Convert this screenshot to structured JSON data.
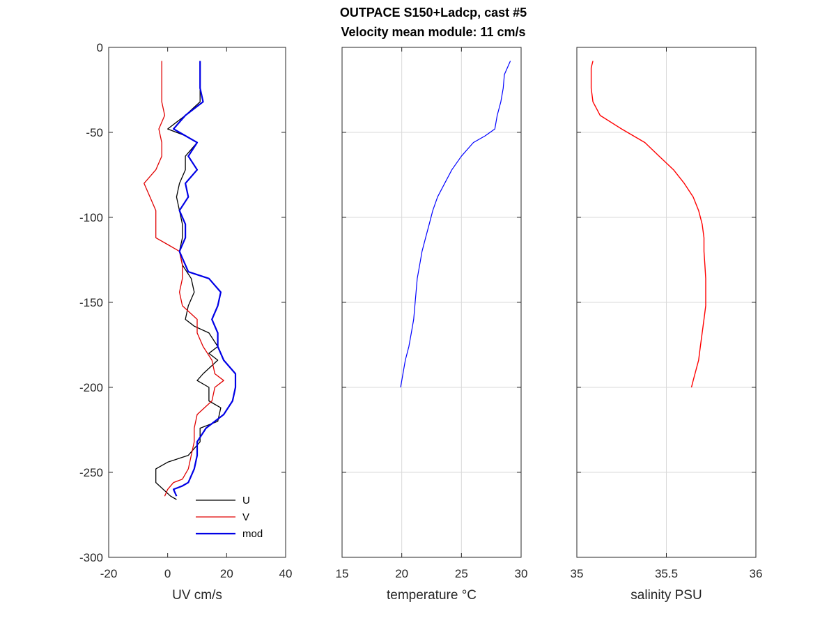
{
  "title_line1": "OUTPACE S150+Ladcp, cast #5",
  "title_line2": "Velocity mean module:  11 cm/s",
  "legend": {
    "u": "U",
    "v": "V",
    "mod": "mod"
  },
  "colors": {
    "u": "#000000",
    "v": "#e00000",
    "mod": "#0000e6",
    "temp": "#0000ff",
    "sal": "#ff0000",
    "axis": "#262626",
    "grid": "#d9d9d9"
  },
  "chart_data": [
    {
      "type": "line",
      "xlabel": "UV cm/s",
      "ylabel": "",
      "xlim": [
        -20,
        40
      ],
      "ylim": [
        -300,
        0
      ],
      "xticks": [
        "-20",
        "0",
        "20",
        "40"
      ],
      "yticks": [
        "0",
        "-50",
        "-100",
        "-150",
        "-200",
        "-250",
        "-300"
      ],
      "grid": false,
      "legend_position": "bottom-right",
      "series": [
        {
          "name": "U",
          "x": [
            11,
            11,
            11,
            6,
            0,
            6,
            10,
            6,
            6,
            4,
            3,
            4,
            5,
            5,
            4,
            5,
            8,
            9,
            7,
            6,
            9,
            14,
            17,
            14,
            17,
            12,
            10,
            14,
            14,
            18,
            17,
            11,
            11,
            7,
            0,
            -4,
            -4,
            1,
            3
          ],
          "y": [
            -8,
            -16,
            -32,
            -40,
            -48,
            -52,
            -56,
            -64,
            -72,
            -80,
            -88,
            -96,
            -104,
            -112,
            -120,
            -128,
            -136,
            -144,
            -152,
            -160,
            -164,
            -168,
            -176,
            -180,
            -184,
            -192,
            -196,
            -200,
            -208,
            -212,
            -220,
            -224,
            -232,
            -240,
            -244,
            -248,
            -256,
            -264,
            -266
          ]
        },
        {
          "name": "V",
          "x": [
            -2,
            -2,
            -2,
            -2,
            -1,
            -3,
            -2,
            -2,
            -4,
            -8,
            -6,
            -4,
            -4,
            -4,
            0,
            4,
            5,
            5,
            4,
            5,
            10,
            10,
            12,
            15,
            16,
            19,
            16,
            15,
            10,
            9,
            9,
            8,
            7,
            5,
            2,
            0,
            -1
          ],
          "y": [
            -8,
            -16,
            -24,
            -32,
            -40,
            -48,
            -56,
            -64,
            -72,
            -80,
            -88,
            -96,
            -104,
            -112,
            -116,
            -120,
            -128,
            -136,
            -144,
            -152,
            -160,
            -168,
            -176,
            -184,
            -192,
            -196,
            -200,
            -208,
            -216,
            -224,
            -232,
            -240,
            -248,
            -254,
            -256,
            -260,
            -264
          ]
        },
        {
          "name": "mod",
          "x": [
            11,
            11,
            11,
            12,
            6,
            2,
            10,
            7,
            10,
            6,
            7,
            4,
            6,
            6,
            4,
            5,
            6,
            7,
            14,
            18,
            17,
            15,
            17,
            17,
            19,
            23,
            23,
            22,
            19,
            13,
            10,
            10,
            9,
            7,
            5,
            2,
            3
          ],
          "y": [
            -8,
            -16,
            -24,
            -32,
            -40,
            -48,
            -56,
            -64,
            -72,
            -80,
            -88,
            -96,
            -104,
            -112,
            -120,
            -124,
            -128,
            -132,
            -136,
            -144,
            -152,
            -160,
            -168,
            -176,
            -184,
            -192,
            -200,
            -208,
            -216,
            -224,
            -232,
            -240,
            -248,
            -256,
            -258,
            -260,
            -264
          ]
        }
      ]
    },
    {
      "type": "line",
      "xlabel": "temperature °C",
      "ylabel": "",
      "xlim": [
        15,
        30
      ],
      "ylim": [
        -300,
        0
      ],
      "xticks": [
        "15",
        "20",
        "25",
        "30"
      ],
      "grid": true,
      "series": [
        {
          "name": "",
          "x": [
            29.1,
            28.6,
            28.5,
            28.3,
            28.0,
            27.8,
            27.0,
            26.0,
            25.0,
            24.2,
            23.6,
            23.0,
            22.6,
            22.3,
            22.0,
            21.7,
            21.5,
            21.3,
            21.2,
            21.1,
            21.0,
            20.8,
            20.6,
            20.3,
            20.1,
            19.9
          ],
          "y": [
            -8,
            -16,
            -24,
            -32,
            -40,
            -48,
            -52,
            -56,
            -64,
            -72,
            -80,
            -88,
            -96,
            -104,
            -112,
            -120,
            -128,
            -136,
            -144,
            -152,
            -160,
            -168,
            -176,
            -184,
            -192,
            -200
          ]
        }
      ]
    },
    {
      "type": "line",
      "xlabel": "salinity PSU",
      "ylabel": "",
      "xlim": [
        35,
        36
      ],
      "ylim": [
        -300,
        0
      ],
      "xticks": [
        "35",
        "35.5",
        "36"
      ],
      "grid": true,
      "series": [
        {
          "name": "",
          "x": [
            35.09,
            35.08,
            35.08,
            35.08,
            35.09,
            35.13,
            35.25,
            35.38,
            35.46,
            35.54,
            35.6,
            35.65,
            35.68,
            35.7,
            35.71,
            35.71,
            35.715,
            35.72,
            35.72,
            35.72,
            35.71,
            35.7,
            35.69,
            35.68,
            35.67,
            35.66,
            35.65,
            35.64
          ],
          "y": [
            -8,
            -12,
            -16,
            -24,
            -32,
            -40,
            -48,
            -56,
            -64,
            -72,
            -80,
            -88,
            -96,
            -104,
            -112,
            -120,
            -128,
            -136,
            -144,
            -152,
            -160,
            -168,
            -176,
            -184,
            -188,
            -192,
            -196,
            -200
          ]
        }
      ]
    }
  ]
}
